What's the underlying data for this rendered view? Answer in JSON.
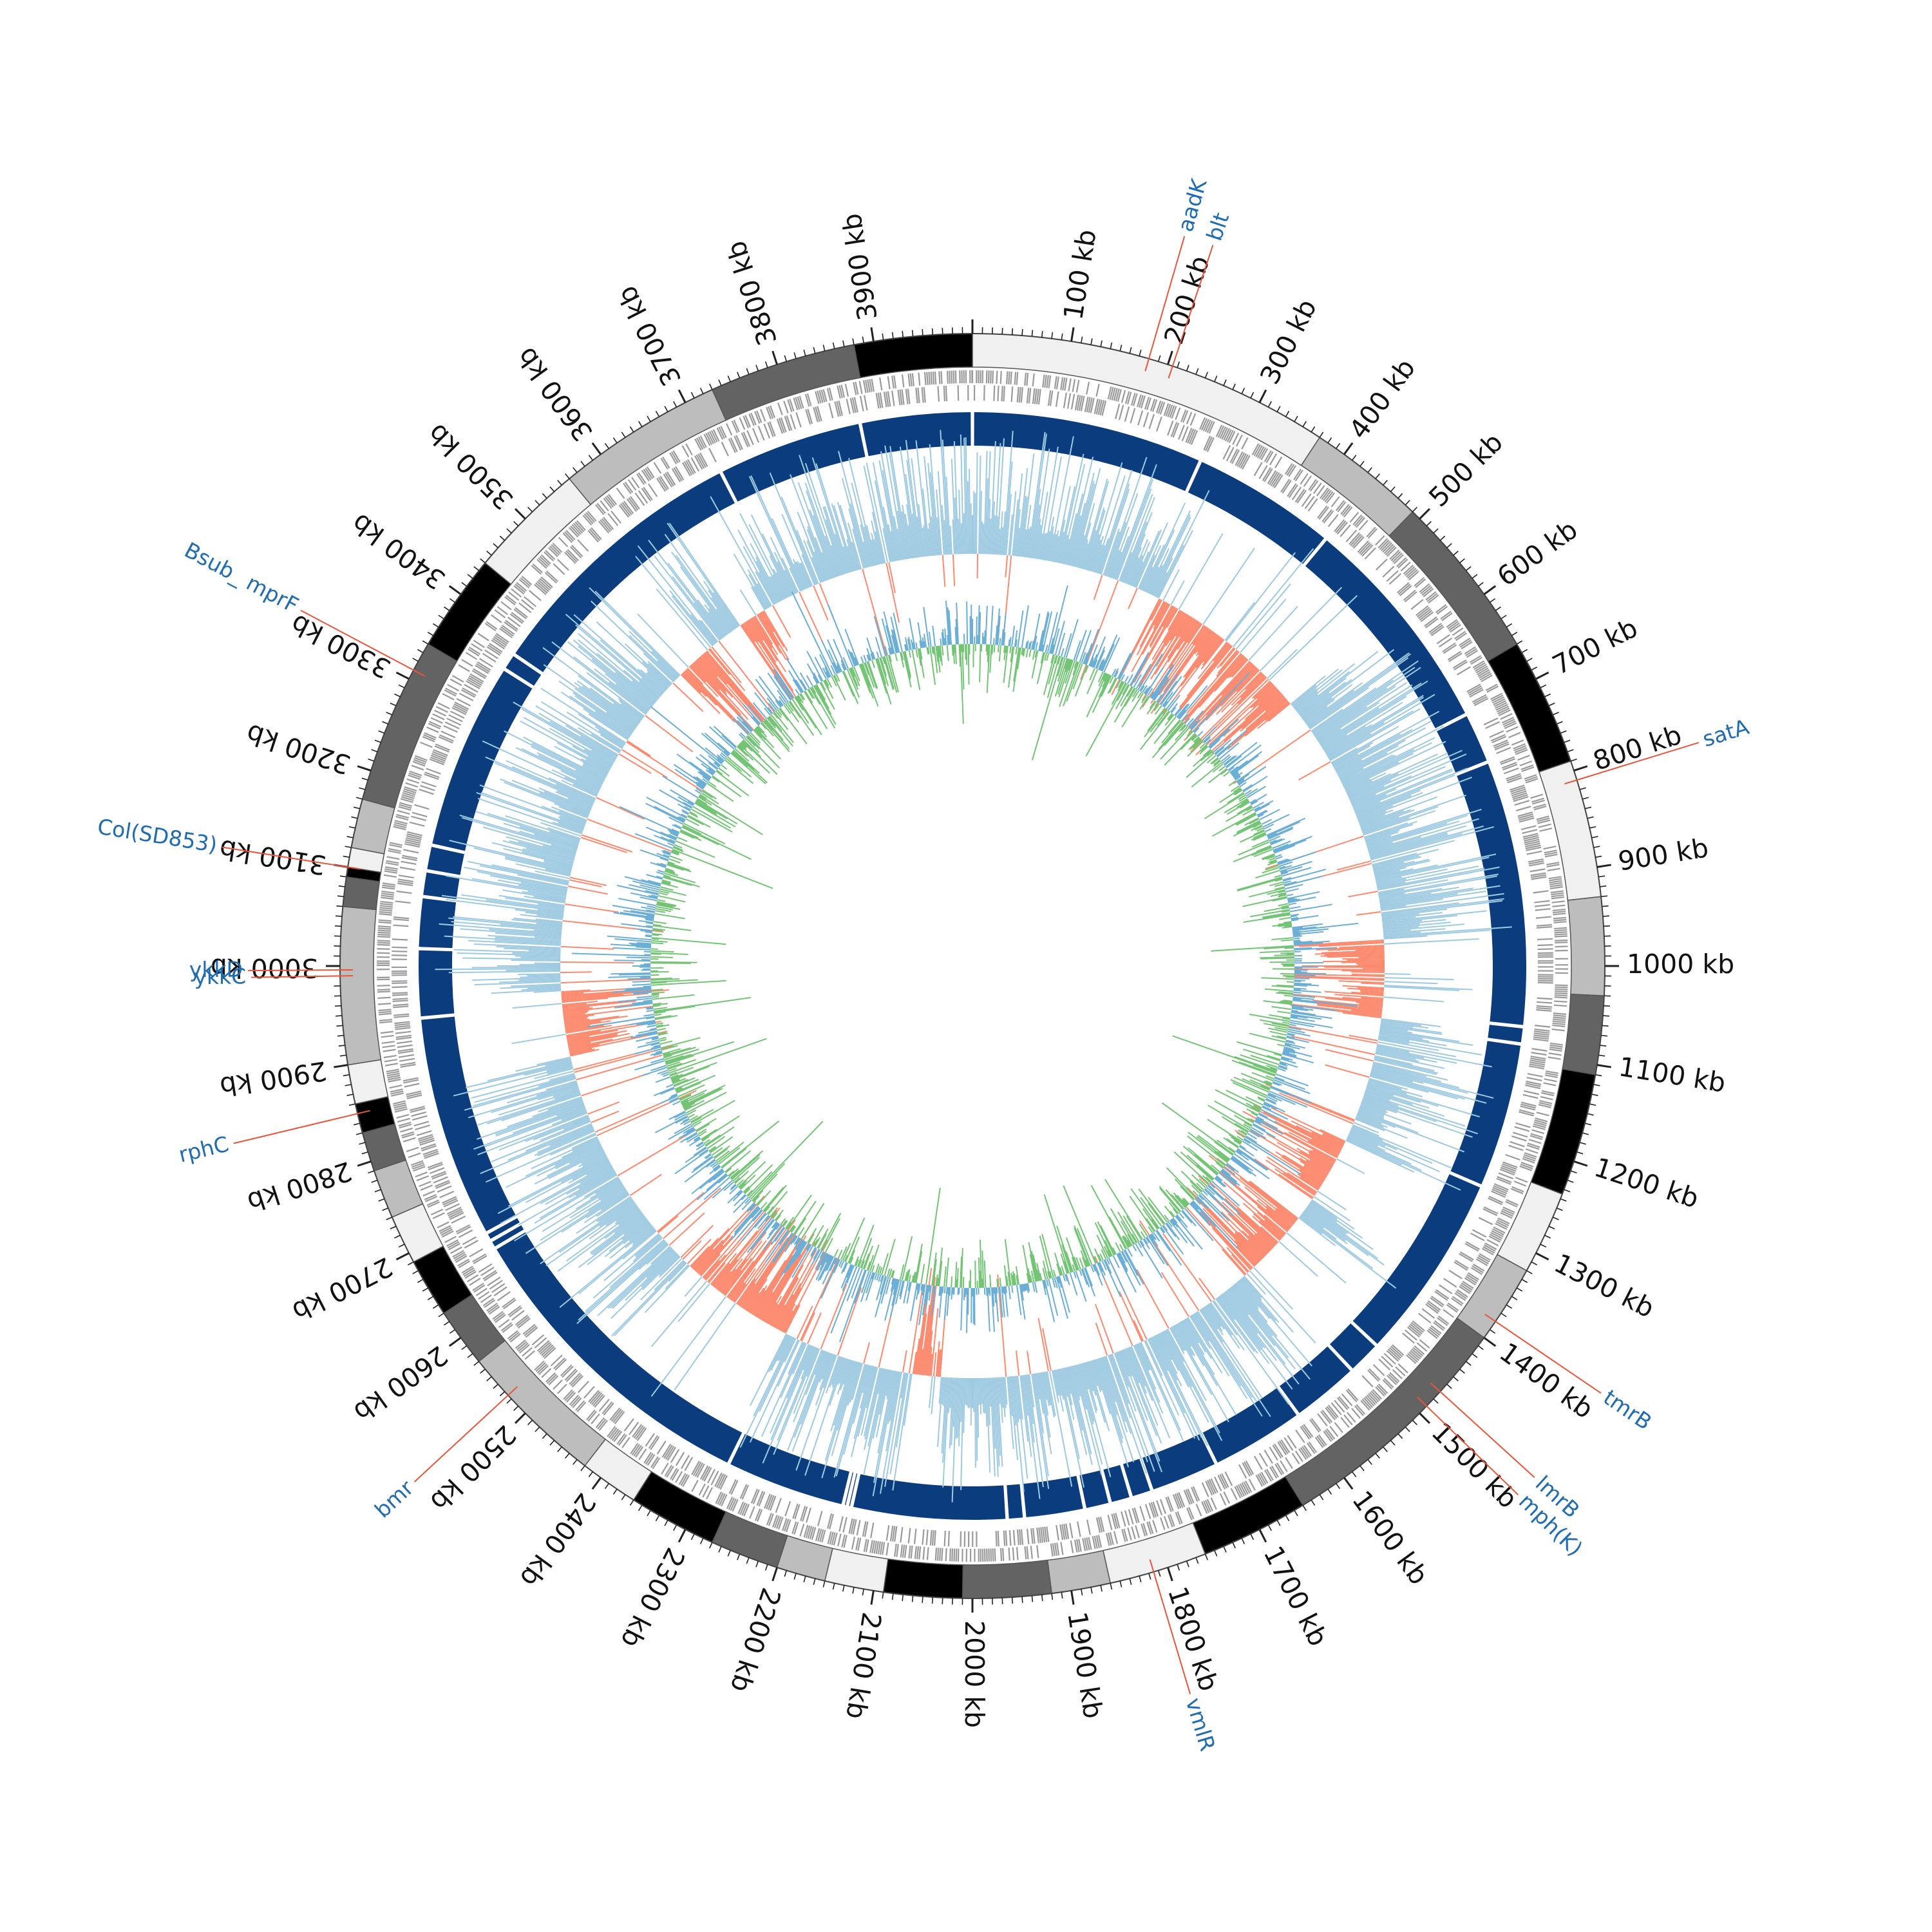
{
  "genome": {
    "length_kb": 4000,
    "tick_unit": "kb",
    "major_tick_every_kb": 100,
    "minor_tick_every_kb": 10
  },
  "colors": {
    "label_text": "#1f6cb0",
    "label_line": "#e8553a",
    "backbone": "#0b3d7e",
    "feature_gray": "#9a9a9a",
    "gc_skew_positive": "#9ecae1",
    "gc_skew_negative": "#fb8a6f",
    "gc_content_above": "#6baed6",
    "gc_content_below": "#74c476",
    "tick_text": "#111111"
  },
  "contig_shades": [
    "#f0f0f0",
    "#bdbdbd",
    "#636363",
    "#000000"
  ],
  "tick_labels": [
    "100 kb",
    "200 kb",
    "300 kb",
    "400 kb",
    "500 kb",
    "600 kb",
    "700 kb",
    "800 kb",
    "900 kb",
    "1000 kb",
    "1100 kb",
    "1200 kb",
    "1300 kb",
    "1400 kb",
    "1500 kb",
    "1600 kb",
    "1700 kb",
    "1800 kb",
    "1900 kb",
    "2000 kb",
    "2100 kb",
    "2200 kb",
    "2300 kb",
    "2400 kb",
    "2500 kb",
    "2600 kb",
    "2700 kb",
    "2800 kb",
    "2900 kb",
    "3000 kb",
    "3100 kb",
    "3200 kb",
    "3300 kb",
    "3400 kb",
    "3500 kb",
    "3600 kb",
    "3700 kb",
    "3800 kb",
    "3900 kb"
  ],
  "genes": [
    {
      "name": "aadK",
      "position_kb": 180
    },
    {
      "name": "blt",
      "position_kb": 205
    },
    {
      "name": "satA",
      "position_kb": 810
    },
    {
      "name": "tmrB",
      "position_kb": 1380
    },
    {
      "name": "lmrB",
      "position_kb": 1470
    },
    {
      "name": "mph(K)",
      "position_kb": 1490
    },
    {
      "name": "vmlR",
      "position_kb": 1815
    },
    {
      "name": "bmr",
      "position_kb": 2525
    },
    {
      "name": "rphC",
      "position_kb": 2850
    },
    {
      "name": "ykkC",
      "position_kb": 2990
    },
    {
      "name": "ykkD",
      "position_kb": 2996
    },
    {
      "name": "Col(SD853)",
      "position_kb": 3100
    },
    {
      "name": "Bsub_ mprF",
      "position_kb": 3310
    }
  ]
}
